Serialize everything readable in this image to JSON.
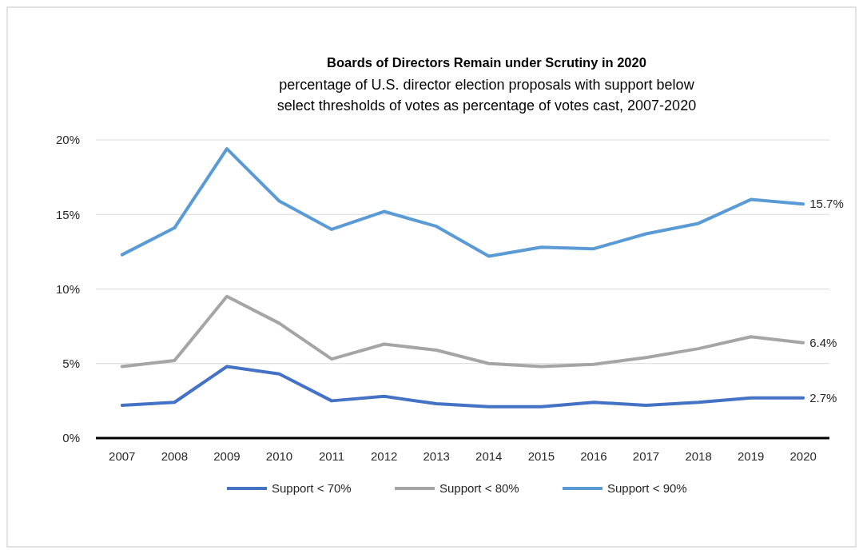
{
  "chart_data": {
    "type": "line",
    "title": "Boards of Directors Remain under Scrutiny in 2020",
    "subtitle": "percentage of U.S. director election proposals with support below select thresholds of votes as percentage of votes cast, 2007-2020",
    "categories": [
      "2007",
      "2008",
      "2009",
      "2010",
      "2011",
      "2012",
      "2013",
      "2014",
      "2015",
      "2016",
      "2017",
      "2018",
      "2019",
      "2020"
    ],
    "series": [
      {
        "name": "Support < 70%",
        "color": "#4472c4",
        "values": [
          2.2,
          2.4,
          4.8,
          4.3,
          2.5,
          2.8,
          2.3,
          2.1,
          2.1,
          2.4,
          2.2,
          2.4,
          2.7,
          2.7
        ],
        "value_labels": [
          null,
          null,
          null,
          null,
          null,
          null,
          null,
          null,
          null,
          null,
          null,
          null,
          null,
          "2.7%"
        ]
      },
      {
        "name": "Support < 80%",
        "color": "#a5a5a5",
        "values": [
          4.8,
          5.2,
          9.5,
          7.7,
          5.3,
          6.3,
          5.9,
          5.0,
          4.8,
          4.95,
          5.4,
          6.0,
          6.8,
          6.4
        ],
        "value_labels": [
          null,
          null,
          null,
          null,
          null,
          null,
          null,
          null,
          null,
          null,
          null,
          null,
          null,
          "6.4%"
        ]
      },
      {
        "name": "Support < 90%",
        "color": "#5b9bd5",
        "values": [
          12.3,
          14.1,
          19.4,
          15.9,
          14.0,
          15.2,
          14.2,
          12.2,
          12.8,
          12.7,
          13.7,
          14.4,
          16.0,
          15.7
        ],
        "value_labels": [
          null,
          null,
          null,
          null,
          null,
          null,
          null,
          null,
          null,
          null,
          null,
          null,
          null,
          "15.7%"
        ]
      }
    ],
    "ylim": [
      0,
      20
    ],
    "yticks": [
      {
        "value": 0,
        "label": "0%"
      },
      {
        "value": 5,
        "label": "5%"
      },
      {
        "value": 10,
        "label": "10%"
      },
      {
        "value": 15,
        "label": "15%"
      },
      {
        "value": 20,
        "label": "20%"
      }
    ],
    "grid": "y",
    "legend": "bottom",
    "marker": "none",
    "line_style": "solid"
  }
}
